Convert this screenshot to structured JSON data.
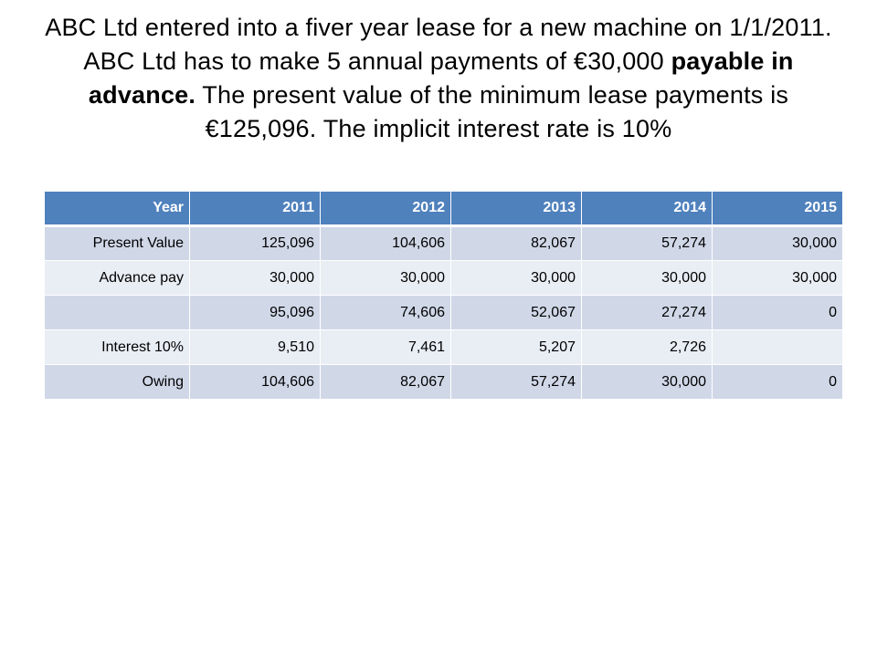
{
  "title": {
    "part1": "ABC Ltd entered into a fiver year lease for a new machine on 1/1/2011.  ABC Ltd has to make 5 annual payments of €30,000 ",
    "bold": "payable in advance.",
    "part2": "  The present value of the minimum lease payments is €125,096.  The implicit interest rate is 10%"
  },
  "table": {
    "header": [
      "Year",
      "2011",
      "2012",
      "2013",
      "2014",
      "2015"
    ],
    "rows": [
      [
        "Present Value",
        "125,096",
        "104,606",
        "82,067",
        "57,274",
        "30,000"
      ],
      [
        "Advance pay",
        "30,000",
        "30,000",
        "30,000",
        "30,000",
        "30,000"
      ],
      [
        "",
        "95,096",
        "74,606",
        "52,067",
        "27,274",
        "0"
      ],
      [
        "Interest 10%",
        "9,510",
        "7,461",
        "5,207",
        "2,726",
        ""
      ],
      [
        "Owing",
        "104,606",
        "82,067",
        "57,274",
        "30,000",
        "0"
      ]
    ]
  },
  "colors": {
    "header_bg": "#4f81bd",
    "row_odd": "#d0d8e8",
    "row_even": "#e9edf4"
  }
}
